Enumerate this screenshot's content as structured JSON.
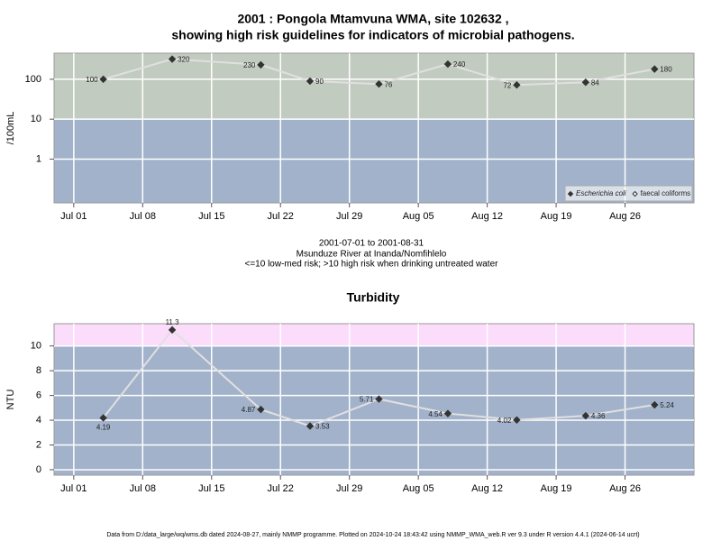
{
  "chart_data": [
    {
      "type": "line",
      "title": "2001 : Pongola Mtamvuna WMA, site 102632 ,",
      "subtitle": "showing high risk guidelines for indicators of microbial pathogens.",
      "ylabel": "/100mL",
      "log_scale": true,
      "grid": true,
      "legend": "bottom-right",
      "threshold": 10,
      "band_colors": {
        "above": "#c2cbbf",
        "below": "#a2b2cb"
      },
      "x": [
        "2001-07-04",
        "2001-07-11",
        "2001-07-20",
        "2001-07-25",
        "2001-08-01",
        "2001-08-08",
        "2001-08-15",
        "2001-08-22",
        "2001-08-29"
      ],
      "xlim": [
        "2001-06-29",
        "2001-09-02"
      ],
      "xticks": [
        {
          "value": "2001-07-01",
          "label": "Jul 01"
        },
        {
          "value": "2001-07-08",
          "label": "Jul 08"
        },
        {
          "value": "2001-07-15",
          "label": "Jul 15"
        },
        {
          "value": "2001-07-22",
          "label": "Jul 22"
        },
        {
          "value": "2001-07-29",
          "label": "Jul 29"
        },
        {
          "value": "2001-08-05",
          "label": "Aug 05"
        },
        {
          "value": "2001-08-12",
          "label": "Aug 12"
        },
        {
          "value": "2001-08-19",
          "label": "Aug 19"
        },
        {
          "value": "2001-08-26",
          "label": "Aug 26"
        }
      ],
      "ylim": [
        0.08,
        450
      ],
      "yticks": [
        1,
        10,
        100
      ],
      "series": [
        {
          "name": "Escherichia coli",
          "color": "#333333",
          "marker": "filled",
          "values": [
            100,
            320,
            230,
            90,
            76,
            240,
            72,
            84,
            180
          ]
        },
        {
          "name": "faecal coliforms",
          "color": "#333333",
          "marker": "hollow",
          "values": [
            null,
            null,
            null,
            null,
            null,
            null,
            null,
            null,
            null
          ]
        }
      ],
      "caption": [
        "2001-07-01 to 2001-08-31",
        "Msunduze River at Inanda/Nomfihlelo",
        "<=10 low-med risk; >10 high risk when drinking untreated water"
      ]
    },
    {
      "type": "line",
      "title": "Turbidity",
      "ylabel": "NTU",
      "log_scale": false,
      "grid": true,
      "threshold": 10,
      "band_colors": {
        "above": "#fbdcfb",
        "below": "#a2b2cb"
      },
      "x": [
        "2001-07-04",
        "2001-07-11",
        "2001-07-20",
        "2001-07-25",
        "2001-08-01",
        "2001-08-08",
        "2001-08-15",
        "2001-08-22",
        "2001-08-29"
      ],
      "xlim": [
        "2001-06-29",
        "2001-09-02"
      ],
      "xticks": [
        {
          "value": "2001-07-01",
          "label": "Jul 01"
        },
        {
          "value": "2001-07-08",
          "label": "Jul 08"
        },
        {
          "value": "2001-07-15",
          "label": "Jul 15"
        },
        {
          "value": "2001-07-22",
          "label": "Jul 22"
        },
        {
          "value": "2001-07-29",
          "label": "Jul 29"
        },
        {
          "value": "2001-08-05",
          "label": "Aug 05"
        },
        {
          "value": "2001-08-12",
          "label": "Aug 12"
        },
        {
          "value": "2001-08-19",
          "label": "Aug 19"
        },
        {
          "value": "2001-08-26",
          "label": "Aug 26"
        }
      ],
      "ylim": [
        -0.44,
        11.8
      ],
      "yticks": [
        0,
        2,
        4,
        6,
        8,
        10
      ],
      "series": [
        {
          "name": "Turbidity",
          "color": "#333333",
          "marker": "filled",
          "values": [
            4.19,
            11.3,
            4.87,
            3.53,
            5.71,
            4.54,
            4.02,
            4.36,
            5.24
          ]
        }
      ]
    }
  ],
  "footer": "Data from D:/data_large/wq/wms.db dated 2024-08-27, mainly NMMP programme. Plotted on 2024-10-24 18:43:42 using NMMP_WMA_web.R ver 9.3 under R version 4.4.1 (2024-06-14 ucrt)"
}
